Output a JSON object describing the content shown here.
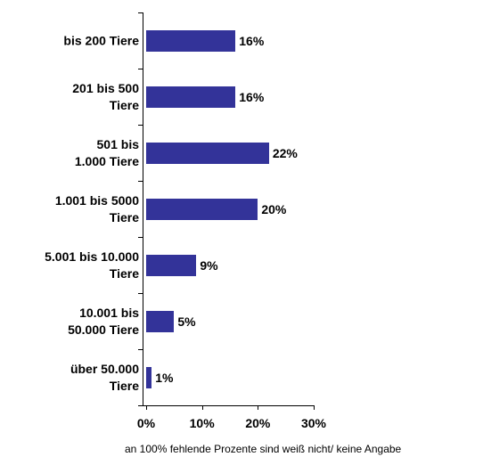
{
  "chart_data": {
    "type": "bar",
    "orientation": "horizontal",
    "categories": [
      "bis 200 Tiere",
      "201 bis 500\nTiere",
      "501 bis\n1.000 Tiere",
      "1.001 bis 5000\nTiere",
      "5.001 bis 10.000\nTiere",
      "10.001 bis\n50.000 Tiere",
      "über 50.000\nTiere"
    ],
    "values": [
      16,
      16,
      22,
      20,
      9,
      5,
      1
    ],
    "value_labels": [
      "16%",
      "16%",
      "22%",
      "20%",
      "9%",
      "5%",
      "1%"
    ],
    "color": "#333399",
    "xlim": [
      0,
      30
    ],
    "xticks": [
      {
        "value": 0,
        "label": "0%"
      },
      {
        "value": 10,
        "label": "10%"
      },
      {
        "value": 20,
        "label": "20%"
      },
      {
        "value": 30,
        "label": "30%"
      }
    ],
    "note": "an 100% fehlende Prozente sind weiß nicht/ keine Angabe"
  }
}
